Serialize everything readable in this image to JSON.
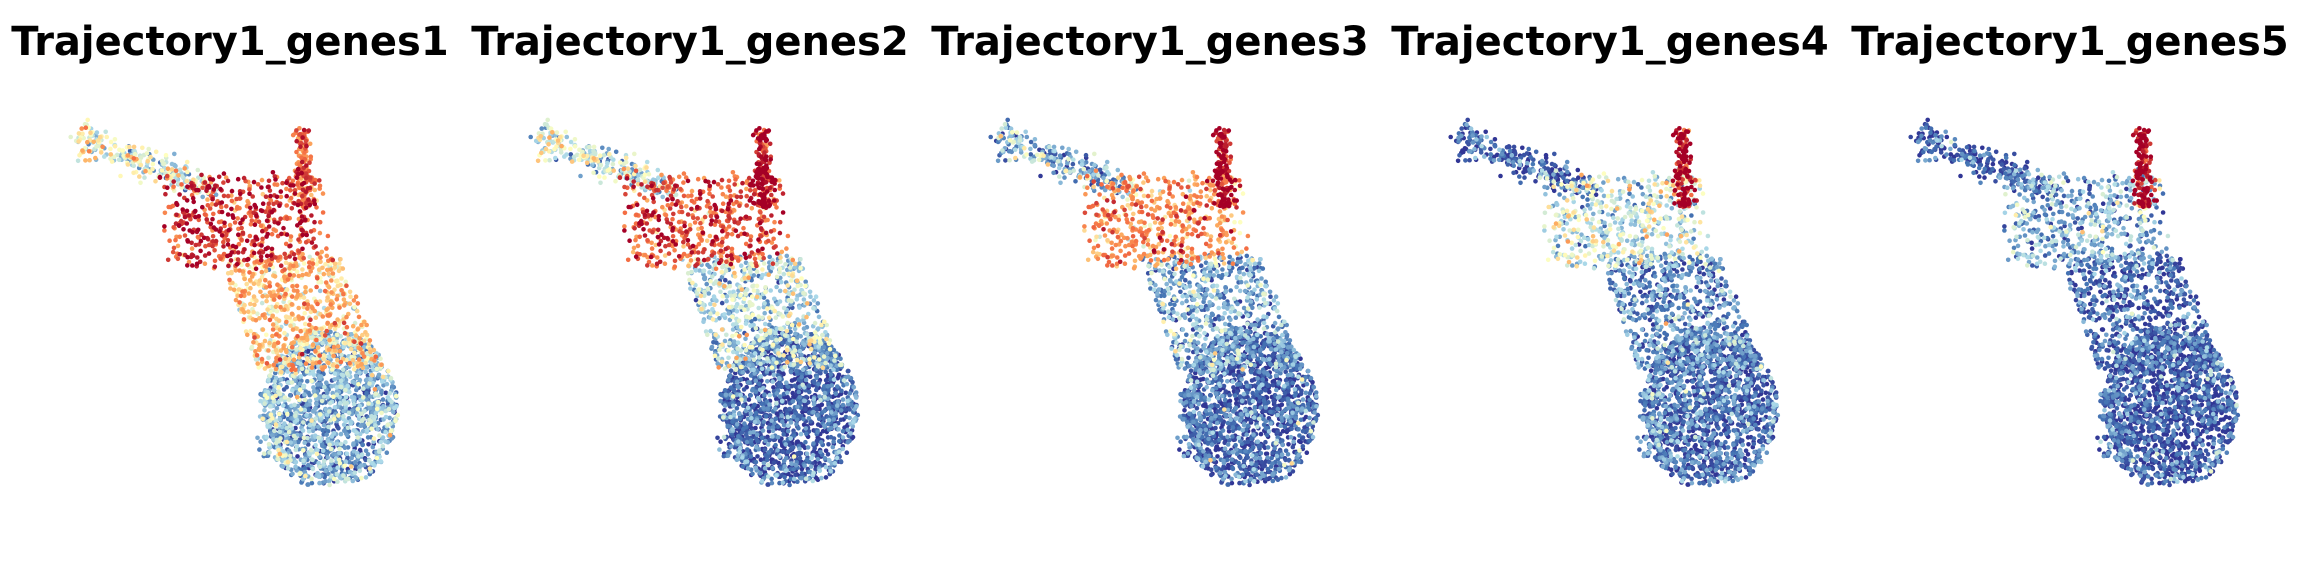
{
  "figure": {
    "colormap": "RdYlBu_r",
    "colors": {
      "low": "#313695",
      "mid_low": "#4575b4",
      "light_blue": "#abd9e9",
      "mid": "#ffffbf",
      "orange": "#fdae61",
      "high_mid": "#f46d43",
      "high": "#a50026",
      "background": "#ffffff"
    }
  },
  "chart_data": [
    {
      "type": "scatter",
      "title": "Trajectory1_genes1",
      "xlabel": "",
      "ylabel": "",
      "axes_visible": false,
      "grid": false,
      "legend": "none",
      "color_by": "expression",
      "expression_profile": {
        "upper_left_arm": 0.42,
        "junction": 0.9,
        "upper_branch": 0.78,
        "middle": 0.6,
        "lower_body": 0.22
      }
    },
    {
      "type": "scatter",
      "title": "Trajectory1_genes2",
      "xlabel": "",
      "ylabel": "",
      "axes_visible": false,
      "grid": false,
      "legend": "none",
      "color_by": "expression",
      "expression_profile": {
        "upper_left_arm": 0.35,
        "junction": 0.85,
        "upper_branch": 0.98,
        "middle": 0.35,
        "lower_body": 0.06
      }
    },
    {
      "type": "scatter",
      "title": "Trajectory1_genes3",
      "xlabel": "",
      "ylabel": "",
      "axes_visible": false,
      "grid": false,
      "legend": "none",
      "color_by": "expression",
      "expression_profile": {
        "upper_left_arm": 0.22,
        "junction": 0.72,
        "upper_branch": 0.98,
        "middle": 0.22,
        "lower_body": 0.06
      }
    },
    {
      "type": "scatter",
      "title": "Trajectory1_genes4",
      "xlabel": "",
      "ylabel": "",
      "axes_visible": false,
      "grid": false,
      "legend": "none",
      "color_by": "expression",
      "expression_profile": {
        "upper_left_arm": 0.06,
        "junction": 0.4,
        "upper_branch": 0.98,
        "middle": 0.16,
        "lower_body": 0.08
      }
    },
    {
      "type": "scatter",
      "title": "Trajectory1_genes5",
      "xlabel": "",
      "ylabel": "",
      "axes_visible": false,
      "grid": false,
      "legend": "none",
      "color_by": "expression",
      "expression_profile": {
        "upper_left_arm": 0.05,
        "junction": 0.25,
        "upper_branch": 0.98,
        "middle": 0.08,
        "lower_body": 0.03
      }
    }
  ]
}
